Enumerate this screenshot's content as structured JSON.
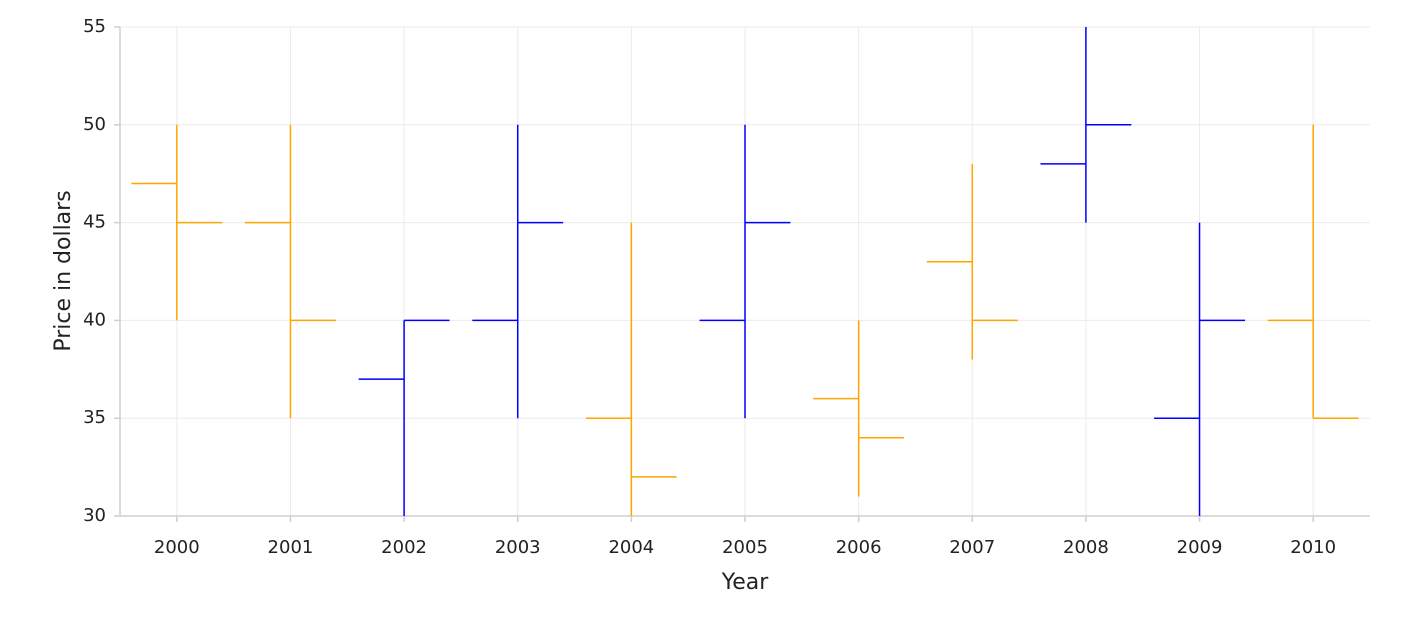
{
  "chart_data": {
    "type": "ohlc",
    "x_label": "Year",
    "y_label": "Price in dollars",
    "categories": [
      "2000",
      "2001",
      "2002",
      "2003",
      "2004",
      "2005",
      "2006",
      "2007",
      "2008",
      "2009",
      "2010"
    ],
    "open": [
      47,
      45,
      37,
      40,
      35,
      40,
      36,
      43,
      48,
      35,
      40
    ],
    "high": [
      50,
      50,
      40,
      50,
      45,
      50,
      40,
      48,
      55,
      45,
      50
    ],
    "low": [
      40,
      35,
      30,
      35,
      30,
      35,
      31,
      38,
      45,
      30,
      35
    ],
    "close": [
      45,
      40,
      40,
      45,
      32,
      45,
      34,
      40,
      50,
      40,
      35
    ],
    "increasing_color": "#0000ff",
    "decreasing_color": "#ffa500",
    "ylim": [
      30,
      55
    ],
    "yticks": [
      30,
      35,
      40,
      45,
      50,
      55
    ],
    "grid": true
  }
}
